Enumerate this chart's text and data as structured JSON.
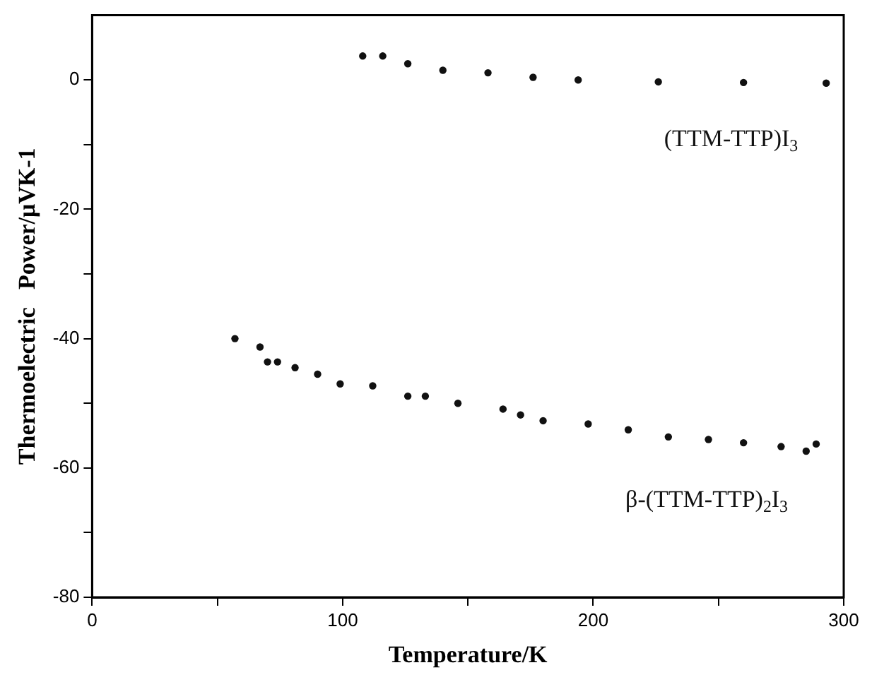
{
  "chart_data": {
    "type": "scatter",
    "xlabel": "Temperature/K",
    "ylabel": "Thermoelectric   Power/μVK-1",
    "xlim": [
      0,
      300
    ],
    "ylim": [
      -80,
      10
    ],
    "xticks": [
      0,
      {
        "value": 50,
        "label": null
      },
      100,
      {
        "value": 150,
        "label": null
      },
      200,
      {
        "value": 250,
        "label": null
      },
      300
    ],
    "yticks": [
      -80,
      {
        "value": -70,
        "label": null
      },
      -60,
      {
        "value": -50,
        "label": null
      },
      -40,
      {
        "value": -30,
        "label": null
      },
      -20,
      {
        "value": -10,
        "label": null
      },
      0
    ],
    "grid": false,
    "legend": false,
    "marker": "circle",
    "series": [
      {
        "name": "(TTM-TTP)I$_{3}$",
        "color": "#111111",
        "x": [
          108,
          116,
          126,
          140,
          158,
          176,
          194,
          226,
          260,
          293
        ],
        "values": [
          3.7,
          3.7,
          2.5,
          1.5,
          1.1,
          0.4,
          0,
          -0.3,
          -0.4,
          -0.5
        ]
      },
      {
        "name": "β-(TTM-TTP)$_{2}$I$_{3}$",
        "color": "#111111",
        "x": [
          57,
          67,
          70,
          74,
          81,
          90,
          99,
          112,
          126,
          133,
          146,
          164,
          171,
          180,
          198,
          214,
          230,
          246,
          260,
          275,
          285,
          289
        ],
        "values": [
          -40,
          -41.3,
          -43.6,
          -43.6,
          -44.5,
          -45.5,
          -47,
          -47.3,
          -48.9,
          -48.9,
          -50,
          -50.9,
          -51.8,
          -52.7,
          -53.2,
          -54.1,
          -55.2,
          -55.6,
          -56.1,
          -56.7,
          -57.4,
          -56.3
        ]
      }
    ]
  }
}
